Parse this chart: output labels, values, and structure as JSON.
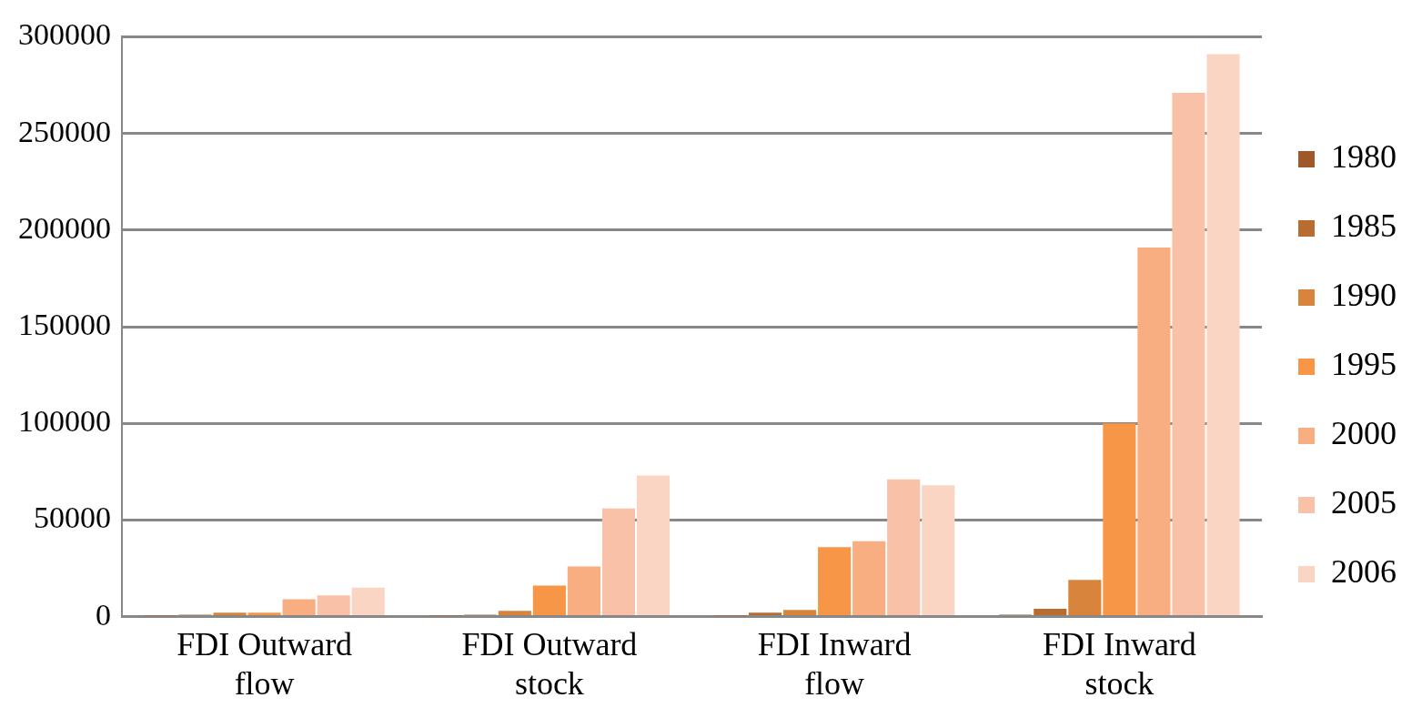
{
  "chart_data": {
    "type": "bar",
    "categories": [
      "FDI Outward flow",
      "FDI Outward stock",
      "FDI Inward flow",
      "FDI Inward stock"
    ],
    "series": [
      {
        "name": "1980",
        "color": "#a0582a",
        "values": [
          500,
          500,
          500,
          1000
        ]
      },
      {
        "name": "1985",
        "color": "#b86c30",
        "values": [
          1000,
          1000,
          2000,
          4000
        ]
      },
      {
        "name": "1990",
        "color": "#d9843c",
        "values": [
          2000,
          3000,
          3500,
          19000
        ]
      },
      {
        "name": "1995",
        "color": "#f79646",
        "values": [
          2000,
          16000,
          36000,
          100000
        ]
      },
      {
        "name": "2000",
        "color": "#f8ae80",
        "values": [
          9000,
          26000,
          39000,
          191000
        ]
      },
      {
        "name": "2005",
        "color": "#f9c2a8",
        "values": [
          11000,
          56000,
          71000,
          271000
        ]
      },
      {
        "name": "2006",
        "color": "#fad5c4",
        "values": [
          15000,
          73000,
          68000,
          291000
        ]
      }
    ],
    "ylim": [
      0,
      300000
    ],
    "yticks": [
      0,
      50000,
      100000,
      150000,
      200000,
      250000,
      300000
    ],
    "grid": "y",
    "legend": "right"
  }
}
